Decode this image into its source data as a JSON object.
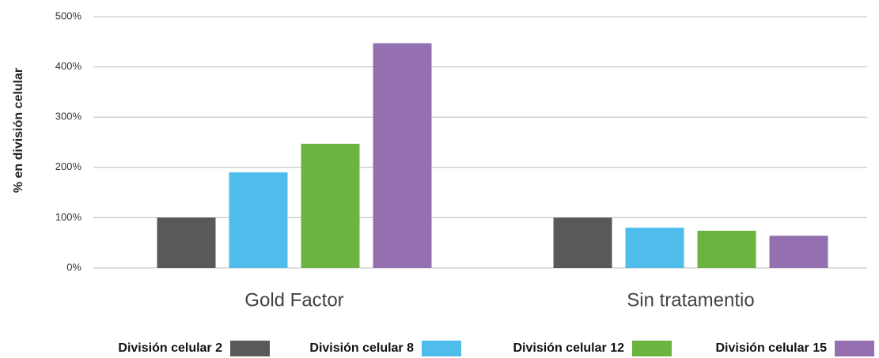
{
  "chart_data": {
    "type": "bar",
    "ylabel": "% en división celular",
    "xlabel": "",
    "ylim": [
      0,
      500
    ],
    "yticks": [
      0,
      100,
      200,
      300,
      400,
      500
    ],
    "ytick_labels": [
      "0%",
      "100%",
      "200%",
      "300%",
      "400%",
      "500%"
    ],
    "categories": [
      "Gold Factor",
      "Sin tratamentio"
    ],
    "series": [
      {
        "name": "División celular 2",
        "color": "#595959",
        "values": [
          100,
          100
        ]
      },
      {
        "name": "División celular 8",
        "color": "#4fbdeb",
        "values": [
          190,
          80
        ]
      },
      {
        "name": "División celular 12",
        "color": "#6db33f",
        "values": [
          247,
          74
        ]
      },
      {
        "name": "División celular 15",
        "color": "#9470b0",
        "values": [
          447,
          64
        ]
      }
    ],
    "grid": true,
    "legend_position": "bottom"
  }
}
